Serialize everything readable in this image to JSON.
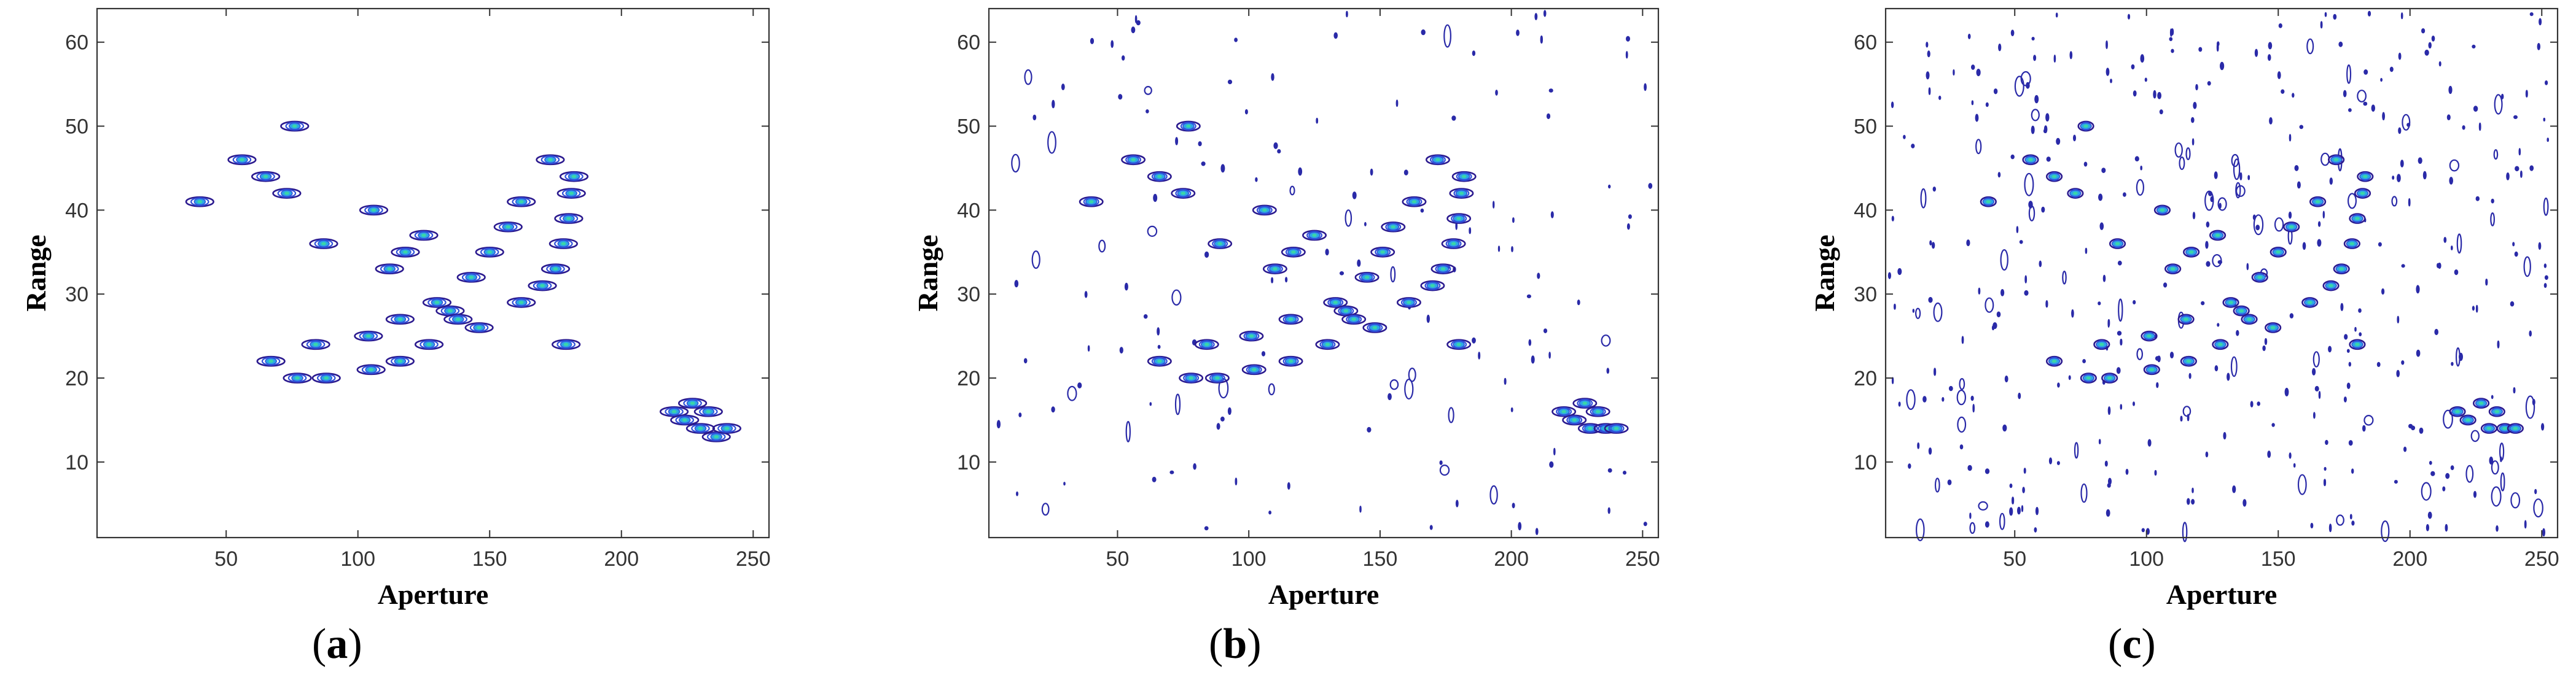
{
  "chart_data": [
    {
      "type": "scatter",
      "subplot_label": "a",
      "xlabel": "Aperture",
      "ylabel": "Range",
      "xlim": [
        1,
        256
      ],
      "ylim": [
        1,
        64
      ],
      "xticks": [
        50,
        100,
        150,
        200,
        250
      ],
      "yticks": [
        10,
        20,
        30,
        40,
        50,
        60
      ],
      "grid": false,
      "noise_level": 0,
      "targets": [
        [
          40,
          41
        ],
        [
          56,
          46
        ],
        [
          65,
          44
        ],
        [
          73,
          42
        ],
        [
          76,
          50
        ],
        [
          67,
          22
        ],
        [
          77,
          20
        ],
        [
          84,
          24
        ],
        [
          88,
          20
        ],
        [
          87,
          36
        ],
        [
          104,
          25
        ],
        [
          105,
          21
        ],
        [
          106,
          40
        ],
        [
          112,
          33
        ],
        [
          116,
          27
        ],
        [
          116,
          22
        ],
        [
          118,
          35
        ],
        [
          125,
          37
        ],
        [
          127,
          24
        ],
        [
          130,
          29
        ],
        [
          135,
          28
        ],
        [
          138,
          27
        ],
        [
          143,
          32
        ],
        [
          146,
          26
        ],
        [
          150,
          35
        ],
        [
          157,
          38
        ],
        [
          162,
          29
        ],
        [
          162,
          41
        ],
        [
          170,
          31
        ],
        [
          173,
          46
        ],
        [
          175,
          33
        ],
        [
          178,
          36
        ],
        [
          179,
          24
        ],
        [
          180,
          39
        ],
        [
          181,
          42
        ],
        [
          182,
          44
        ],
        [
          220,
          16
        ],
        [
          224,
          15
        ],
        [
          227,
          17
        ],
        [
          230,
          14
        ],
        [
          233,
          16
        ],
        [
          236,
          13
        ],
        [
          240,
          14
        ]
      ]
    },
    {
      "type": "scatter",
      "subplot_label": "b",
      "xlabel": "Aperture",
      "ylabel": "Range",
      "xlim": [
        1,
        256
      ],
      "ylim": [
        1,
        64
      ],
      "xticks": [
        50,
        100,
        150,
        200,
        250
      ],
      "yticks": [
        10,
        20,
        30,
        40,
        50,
        60
      ],
      "grid": false,
      "noise_level": 0.35,
      "targets": [
        [
          40,
          41
        ],
        [
          56,
          46
        ],
        [
          66,
          44
        ],
        [
          75,
          42
        ],
        [
          77,
          50
        ],
        [
          66,
          22
        ],
        [
          78,
          20
        ],
        [
          84,
          24
        ],
        [
          88,
          20
        ],
        [
          89,
          36
        ],
        [
          101,
          25
        ],
        [
          102,
          21
        ],
        [
          106,
          40
        ],
        [
          110,
          33
        ],
        [
          116,
          27
        ],
        [
          116,
          22
        ],
        [
          117,
          35
        ],
        [
          125,
          37
        ],
        [
          130,
          24
        ],
        [
          133,
          29
        ],
        [
          137,
          28
        ],
        [
          140,
          27
        ],
        [
          145,
          32
        ],
        [
          148,
          26
        ],
        [
          151,
          35
        ],
        [
          155,
          38
        ],
        [
          161,
          29
        ],
        [
          163,
          41
        ],
        [
          170,
          31
        ],
        [
          172,
          46
        ],
        [
          174,
          33
        ],
        [
          178,
          36
        ],
        [
          180,
          24
        ],
        [
          180,
          39
        ],
        [
          181,
          42
        ],
        [
          182,
          44
        ],
        [
          220,
          16
        ],
        [
          224,
          15
        ],
        [
          228,
          17
        ],
        [
          230,
          14
        ],
        [
          233,
          16
        ],
        [
          236,
          14
        ],
        [
          240,
          14
        ]
      ]
    },
    {
      "type": "scatter",
      "subplot_label": "c",
      "xlabel": "Aperture",
      "ylabel": "Range",
      "xlim": [
        1,
        256
      ],
      "ylim": [
        1,
        64
      ],
      "xticks": [
        50,
        100,
        150,
        200,
        250
      ],
      "yticks": [
        10,
        20,
        30,
        40,
        50,
        60
      ],
      "grid": false,
      "noise_level": 1,
      "targets": [
        [
          40,
          41
        ],
        [
          56,
          46
        ],
        [
          65,
          44
        ],
        [
          73,
          42
        ],
        [
          77,
          50
        ],
        [
          65,
          22
        ],
        [
          78,
          20
        ],
        [
          83,
          24
        ],
        [
          86,
          20
        ],
        [
          89,
          36
        ],
        [
          101,
          25
        ],
        [
          102,
          21
        ],
        [
          106,
          40
        ],
        [
          110,
          33
        ],
        [
          115,
          27
        ],
        [
          116,
          22
        ],
        [
          117,
          35
        ],
        [
          127,
          37
        ],
        [
          128,
          24
        ],
        [
          132,
          29
        ],
        [
          136,
          28
        ],
        [
          139,
          27
        ],
        [
          143,
          32
        ],
        [
          148,
          26
        ],
        [
          150,
          35
        ],
        [
          155,
          38
        ],
        [
          162,
          29
        ],
        [
          165,
          41
        ],
        [
          170,
          31
        ],
        [
          172,
          46
        ],
        [
          174,
          33
        ],
        [
          178,
          36
        ],
        [
          180,
          24
        ],
        [
          180,
          39
        ],
        [
          182,
          42
        ],
        [
          183,
          44
        ],
        [
          218,
          16
        ],
        [
          222,
          15
        ],
        [
          227,
          17
        ],
        [
          230,
          14
        ],
        [
          233,
          16
        ],
        [
          236,
          14
        ],
        [
          240,
          14
        ]
      ]
    }
  ],
  "colors": {
    "outer_contour": "#2b1a8f",
    "mid_contour": "#2f4fd8",
    "core": "#2ea6e6",
    "peak": "#3ad6a8",
    "noise": "#2a2aa8",
    "axis": "#333333"
  }
}
